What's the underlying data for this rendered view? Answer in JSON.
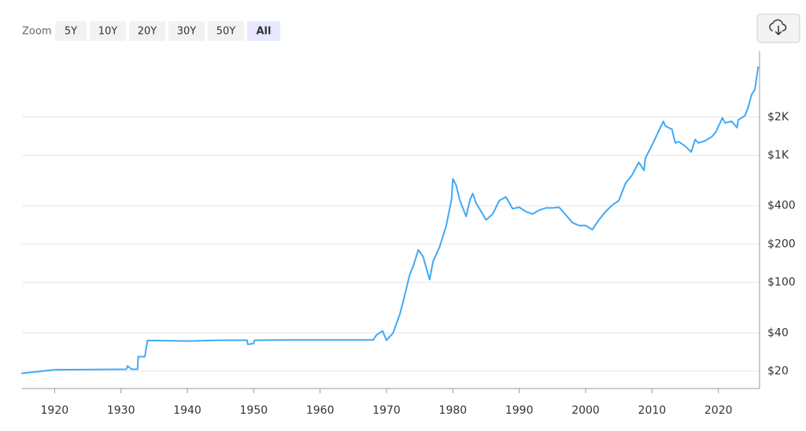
{
  "toolbar": {
    "zoom_label": "Zoom",
    "options": [
      "5Y",
      "10Y",
      "20Y",
      "30Y",
      "50Y",
      "All"
    ],
    "selected": 5
  },
  "chart_data": {
    "type": "line",
    "color": "#3fa9f5",
    "log_scale": true,
    "grid": true,
    "x": [
      1915,
      1920,
      1930.8,
      1931,
      1931.6,
      1932.5,
      1932.6,
      1933.6,
      1934,
      1940,
      1945,
      1949,
      1949.1,
      1950,
      1950.1,
      1955,
      1968,
      1968.5,
      1969.4,
      1970,
      1971,
      1972,
      1972.5,
      1973.5,
      1974,
      1974.8,
      1975.5,
      1976.5,
      1977,
      1978,
      1979,
      1979.8,
      1980,
      1980.5,
      1981,
      1982,
      1982.6,
      1983,
      1983.5,
      1984,
      1985,
      1986,
      1987,
      1988,
      1989,
      1990,
      1991,
      1992,
      1993,
      1994,
      1995,
      1996,
      1997,
      1998,
      1999,
      2000,
      2001,
      2002,
      2003,
      2004,
      2005,
      2006,
      2007,
      2008,
      2008.8,
      2009,
      2010,
      2011,
      2011.7,
      2012,
      2013,
      2013.5,
      2014,
      2015,
      2015.9,
      2016.5,
      2017,
      2018,
      2019,
      2019.6,
      2020.6,
      2021,
      2022,
      2022.8,
      2023,
      2024,
      2024.5,
      2025,
      2025.5,
      2026
    ],
    "values": [
      19.2,
      20.5,
      20.7,
      22,
      20.7,
      20.7,
      26,
      26,
      34.9,
      34.5,
      35,
      35,
      32.5,
      33,
      35,
      35.2,
      35.2,
      38.5,
      41.5,
      35,
      40,
      56,
      70,
      115,
      133,
      180,
      160,
      105,
      145,
      190,
      279,
      450,
      652,
      580,
      450,
      330,
      450,
      500,
      420,
      380,
      310,
      345,
      440,
      470,
      380,
      390,
      360,
      345,
      370,
      385,
      385,
      390,
      340,
      295,
      280,
      280,
      260,
      310,
      360,
      405,
      440,
      600,
      700,
      880,
      760,
      950,
      1200,
      1550,
      1850,
      1700,
      1600,
      1250,
      1280,
      1180,
      1060,
      1330,
      1250,
      1300,
      1400,
      1520,
      1970,
      1800,
      1850,
      1650,
      1900,
      2050,
      2400,
      3000,
      3300,
      5000
    ],
    "xlim": [
      1915.1,
      2026.2
    ],
    "xticks": [
      1920,
      1930,
      1940,
      1950,
      1960,
      1970,
      1980,
      1990,
      2000,
      2010,
      2020
    ],
    "ylim": [
      14.6,
      6600
    ],
    "yticks": [
      {
        "value": 20,
        "label": "$20"
      },
      {
        "value": 40,
        "label": "$40"
      },
      {
        "value": 100,
        "label": "$100"
      },
      {
        "value": 200,
        "label": "$200"
      },
      {
        "value": 400,
        "label": "$400"
      },
      {
        "value": 1000,
        "label": "$1K"
      },
      {
        "value": 2000,
        "label": "$2K"
      }
    ]
  }
}
